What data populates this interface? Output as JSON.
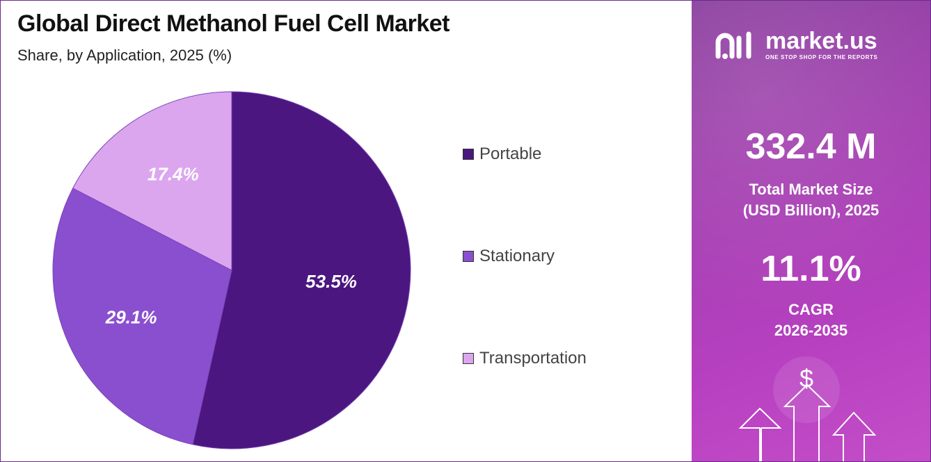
{
  "header": {
    "title": "Global Direct Methanol Fuel Cell Market",
    "subtitle": "Share, by Application, 2025 (%)"
  },
  "chart_data": {
    "type": "pie",
    "title": "Global Direct Methanol Fuel Cell Market",
    "subtitle": "Share, by Application, 2025 (%)",
    "categories": [
      "Portable",
      "Stationary",
      "Transportation"
    ],
    "values": [
      53.5,
      29.1,
      17.4
    ],
    "labels": [
      "53.5%",
      "29.1%",
      "17.4%"
    ],
    "colors": [
      "#4b1680",
      "#8a4fcf",
      "#dca6ef"
    ],
    "legend_position": "right"
  },
  "brand": {
    "name": "market.us",
    "tagline": "ONE STOP SHOP FOR THE REPORTS",
    "icon": "market-us-logo-icon"
  },
  "stats": {
    "market_size_value": "332.4 M",
    "market_size_label_1": "Total Market Size",
    "market_size_label_2": "(USD Billion), 2025",
    "cagr_value": "11.1%",
    "cagr_label_1": "CAGR",
    "cagr_label_2": "2026-2035"
  },
  "decoration": {
    "currency_symbol": "$",
    "icon": "growth-arrows-icon"
  }
}
